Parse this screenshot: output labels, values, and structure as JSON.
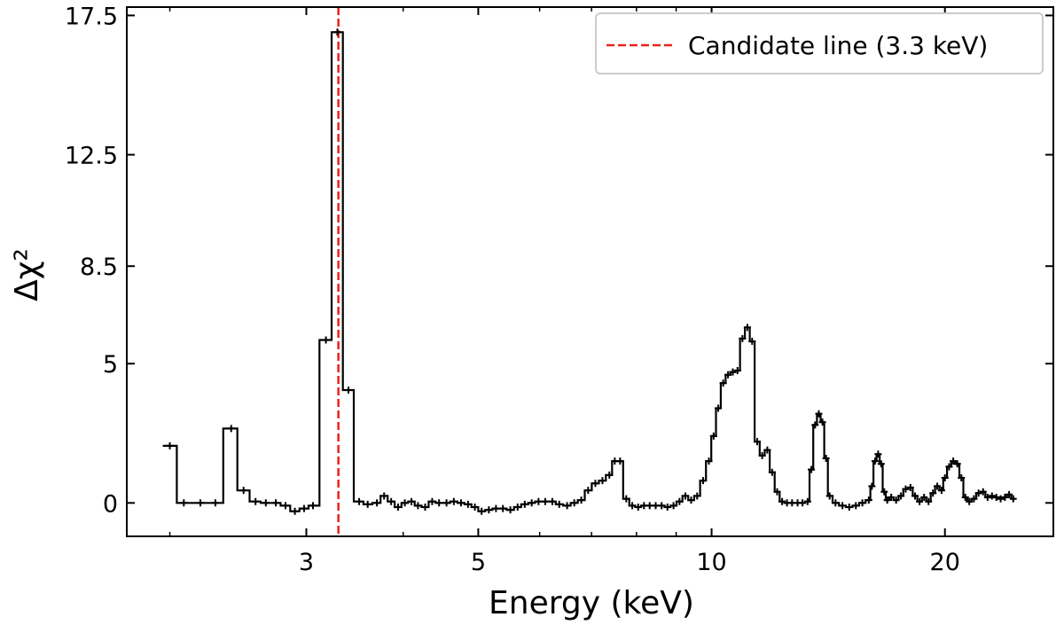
{
  "chart_data": {
    "type": "line",
    "style": "step-histogram with plus markers",
    "title": "",
    "xlabel": "Energy (keV)",
    "ylabel": "Δχ²",
    "xscale": "log",
    "xlim": [
      1.76,
      27.6
    ],
    "ylim": [
      -1.2,
      17.8
    ],
    "xticks": [
      3,
      5,
      10,
      20
    ],
    "xtick_labels": [
      "3",
      "5",
      "10",
      "20"
    ],
    "x_minor_ticks": [
      2,
      4,
      6,
      7,
      8,
      9
    ],
    "yticks": [
      0,
      5,
      8.5,
      12.5,
      17.5
    ],
    "ytick_labels": [
      "0",
      "5",
      "8.5",
      "12.5",
      "17.5"
    ],
    "grid": false,
    "legend_position": "top-right",
    "colors": {
      "data": "#000000",
      "candidate_line": "#e8221b"
    },
    "reference_line": {
      "x": 3.3,
      "label": "Candidate line (3.3 keV)",
      "style": "dashed"
    },
    "series": [
      {
        "points": [
          [
            2.0,
            2.05
          ],
          [
            2.085,
            0
          ],
          [
            2.19,
            0
          ],
          [
            2.29,
            0
          ],
          [
            2.4,
            2.67
          ],
          [
            2.49,
            0.45
          ],
          [
            2.58,
            0.05
          ],
          [
            2.66,
            0.0
          ],
          [
            2.74,
            0.0
          ],
          [
            2.82,
            -0.1
          ],
          [
            2.9,
            -0.3
          ],
          [
            2.98,
            -0.2
          ],
          [
            3.06,
            -0.1
          ],
          [
            3.18,
            5.85
          ],
          [
            3.29,
            16.9
          ],
          [
            3.4,
            4.05
          ],
          [
            3.51,
            0.05
          ],
          [
            3.6,
            -0.05
          ],
          [
            3.7,
            0.0
          ],
          [
            3.78,
            0.25
          ],
          [
            3.86,
            0.05
          ],
          [
            3.94,
            -0.15
          ],
          [
            4.02,
            0.0
          ],
          [
            4.1,
            0.05
          ],
          [
            4.18,
            -0.1
          ],
          [
            4.27,
            -0.15
          ],
          [
            4.36,
            0.05
          ],
          [
            4.45,
            0.0
          ],
          [
            4.55,
            0.0
          ],
          [
            4.65,
            0.05
          ],
          [
            4.75,
            0.0
          ],
          [
            4.85,
            -0.05
          ],
          [
            4.95,
            -0.15
          ],
          [
            5.05,
            -0.3
          ],
          [
            5.16,
            -0.25
          ],
          [
            5.27,
            -0.2
          ],
          [
            5.38,
            -0.2
          ],
          [
            5.5,
            -0.25
          ],
          [
            5.62,
            -0.15
          ],
          [
            5.74,
            -0.05
          ],
          [
            5.86,
            0.0
          ],
          [
            5.98,
            0.05
          ],
          [
            6.1,
            0.05
          ],
          [
            6.23,
            0.05
          ],
          [
            6.36,
            -0.05
          ],
          [
            6.51,
            -0.1
          ],
          [
            6.65,
            0.0
          ],
          [
            6.79,
            0.1
          ],
          [
            6.93,
            0.45
          ],
          [
            7.08,
            0.7
          ],
          [
            7.23,
            0.8
          ],
          [
            7.38,
            1.0
          ],
          [
            7.5,
            1.5
          ],
          [
            7.62,
            1.5
          ],
          [
            7.76,
            0.15
          ],
          [
            7.9,
            -0.1
          ],
          [
            8.04,
            -0.15
          ],
          [
            8.18,
            -0.1
          ],
          [
            8.32,
            -0.1
          ],
          [
            8.47,
            -0.1
          ],
          [
            8.62,
            -0.1
          ],
          [
            8.77,
            -0.15
          ],
          [
            8.93,
            -0.1
          ],
          [
            9.09,
            0.05
          ],
          [
            9.25,
            0.25
          ],
          [
            9.41,
            0.1
          ],
          [
            9.58,
            0.25
          ],
          [
            9.75,
            0.8
          ],
          [
            9.92,
            1.5
          ],
          [
            10.06,
            2.4
          ],
          [
            10.2,
            3.4
          ],
          [
            10.35,
            4.3
          ],
          [
            10.5,
            4.6
          ],
          [
            10.65,
            4.7
          ],
          [
            10.8,
            4.75
          ],
          [
            10.96,
            5.9
          ],
          [
            11.12,
            6.3
          ],
          [
            11.28,
            5.8
          ],
          [
            11.45,
            2.2
          ],
          [
            11.62,
            1.7
          ],
          [
            11.8,
            1.9
          ],
          [
            11.97,
            1.1
          ],
          [
            12.15,
            0.4
          ],
          [
            12.33,
            0.05
          ],
          [
            12.51,
            0
          ],
          [
            12.7,
            0
          ],
          [
            12.91,
            0
          ],
          [
            13.1,
            0
          ],
          [
            13.3,
            0.05
          ],
          [
            13.45,
            1.2
          ],
          [
            13.6,
            2.8
          ],
          [
            13.75,
            3.2
          ],
          [
            13.9,
            2.9
          ],
          [
            14.05,
            1.6
          ],
          [
            14.2,
            0.25
          ],
          [
            14.45,
            0.0
          ],
          [
            14.75,
            -0.1
          ],
          [
            15.05,
            -0.15
          ],
          [
            15.35,
            -0.1
          ],
          [
            15.65,
            0.0
          ],
          [
            15.95,
            0.1
          ],
          [
            16.1,
            0.6
          ],
          [
            16.25,
            1.5
          ],
          [
            16.4,
            1.75
          ],
          [
            16.55,
            1.4
          ],
          [
            16.7,
            0.4
          ],
          [
            16.85,
            0.1
          ],
          [
            17.05,
            0.2
          ],
          [
            17.3,
            0.1
          ],
          [
            17.55,
            0.25
          ],
          [
            17.8,
            0.5
          ],
          [
            18.05,
            0.55
          ],
          [
            18.3,
            0.25
          ],
          [
            18.55,
            0.05
          ],
          [
            18.8,
            0.2
          ],
          [
            19.05,
            0.05
          ],
          [
            19.3,
            0.35
          ],
          [
            19.55,
            0.6
          ],
          [
            19.8,
            0.45
          ],
          [
            20.0,
            0.9
          ],
          [
            20.25,
            1.3
          ],
          [
            20.5,
            1.5
          ],
          [
            20.75,
            1.4
          ],
          [
            21.0,
            0.9
          ],
          [
            21.25,
            0.2
          ],
          [
            21.5,
            0.05
          ],
          [
            21.8,
            0.15
          ],
          [
            22.1,
            0.35
          ],
          [
            22.4,
            0.4
          ],
          [
            22.7,
            0.2
          ],
          [
            23.0,
            0.25
          ],
          [
            23.3,
            0.2
          ],
          [
            23.6,
            0.15
          ],
          [
            23.9,
            0.2
          ],
          [
            24.2,
            0.3
          ],
          [
            24.5,
            0.15
          ]
        ]
      }
    ]
  }
}
